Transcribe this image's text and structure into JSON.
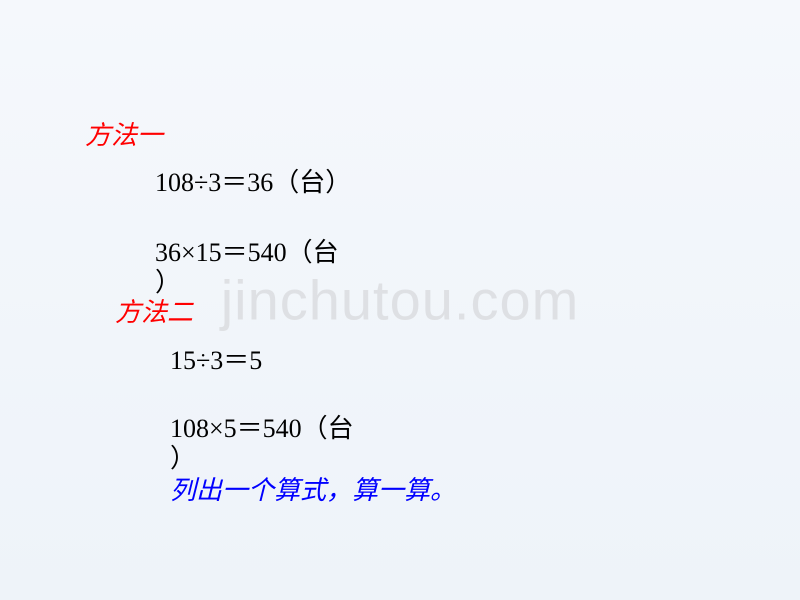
{
  "watermark": "jinchutou.com",
  "heading1": "方法一",
  "equation1": "108÷3＝36（台）",
  "equation2_line1": "36×15＝540（台",
  "equation2_line2": "）",
  "heading2": "方法二",
  "equation3": "15÷3＝5",
  "equation4_line1": "108×5＝540（台",
  "equation4_line2": "）",
  "final_instruction": "列出一个算式，算一算。",
  "colors": {
    "heading_color": "#ff0000",
    "equation_color": "#000000",
    "instruction_color": "#0000ff",
    "background_top": "#f5f8fc",
    "background_bottom": "#eef3f9",
    "watermark_color": "rgba(200, 200, 200, 0.45)"
  },
  "typography": {
    "heading_fontsize": 26,
    "equation_fontsize": 26,
    "instruction_fontsize": 26,
    "watermark_fontsize": 56,
    "heading_style": "italic",
    "instruction_style": "italic"
  }
}
